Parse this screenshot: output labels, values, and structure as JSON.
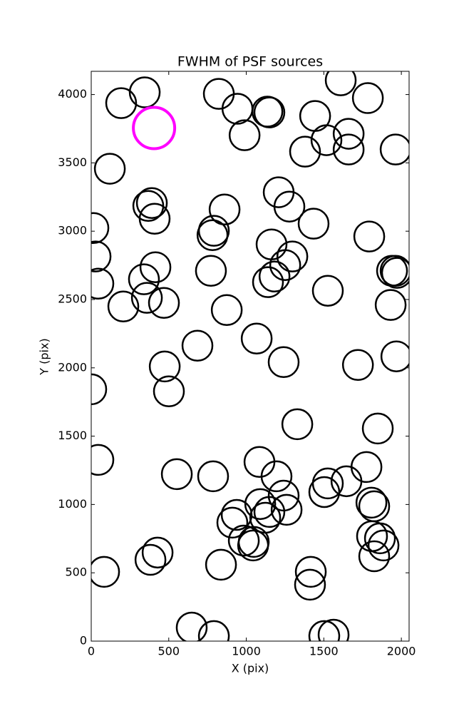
{
  "chart_data": {
    "type": "scatter",
    "title": "FWHM of PSF sources",
    "xlabel": "X (pix)",
    "ylabel": "Y (pix)",
    "xlim": [
      0,
      2050
    ],
    "ylim": [
      0,
      4170
    ],
    "xticks": [
      0,
      500,
      1000,
      1500,
      2000
    ],
    "yticks": [
      0,
      500,
      1000,
      1500,
      2000,
      2500,
      3000,
      3500,
      4000
    ],
    "series": [
      {
        "color": "#000000",
        "x": [
          193,
          345,
          823,
          943,
          1136,
          1149,
          989,
          1444,
          1609,
          1784,
          1517,
          1660,
          1660,
          1379,
          1963,
          120,
          368,
          391,
          409,
          860,
          14,
          28,
          782,
          791,
          1209,
          1278,
          1434,
          1793,
          1163,
          1297,
          1251,
          1182,
          1140,
          772,
          414,
          340,
          46,
          359,
          469,
          207,
          874,
          1526,
          1940,
          1963,
          1972,
          1931,
          1067,
          685,
          474,
          1241,
          1720,
          1968,
          501,
          0,
          1329,
          1848,
          46,
          552,
          786,
          1085,
          1195,
          1775,
          1526,
          1646,
          1503,
          1807,
          1825,
          938,
          910,
          1090,
          1241,
          1260,
          1149,
          1122,
          984,
          1044,
          1048,
          1811,
          1862,
          1885,
          1825,
          428,
          382,
          83,
          837,
          1416,
          1411,
          648,
          791,
          1503,
          1563
        ],
        "y": [
          3937,
          4016,
          4005,
          3896,
          3875,
          3869,
          3702,
          3843,
          4104,
          3974,
          3666,
          3713,
          3598,
          3582,
          3598,
          3457,
          3185,
          3206,
          3091,
          3159,
          3023,
          2815,
          2971,
          3003,
          3285,
          3180,
          3055,
          2961,
          2903,
          2815,
          2752,
          2668,
          2627,
          2710,
          2736,
          2648,
          2616,
          2512,
          2475,
          2449,
          2423,
          2564,
          2710,
          2710,
          2695,
          2460,
          2214,
          2162,
          2010,
          2042,
          2021,
          2084,
          1828,
          1843,
          1587,
          1556,
          1326,
          1222,
          1206,
          1311,
          1206,
          1274,
          1154,
          1170,
          1091,
          1013,
          987,
          924,
          867,
          1003,
          1065,
          961,
          945,
          903,
          736,
          700,
          726,
          768,
          752,
          700,
          621,
          648,
          595,
          507,
          559,
          507,
          413,
          99,
          37,
          37,
          47
        ]
      },
      {
        "color": "#ff00ff",
        "x": [
          405
        ],
        "y": [
          3755
        ]
      }
    ]
  }
}
